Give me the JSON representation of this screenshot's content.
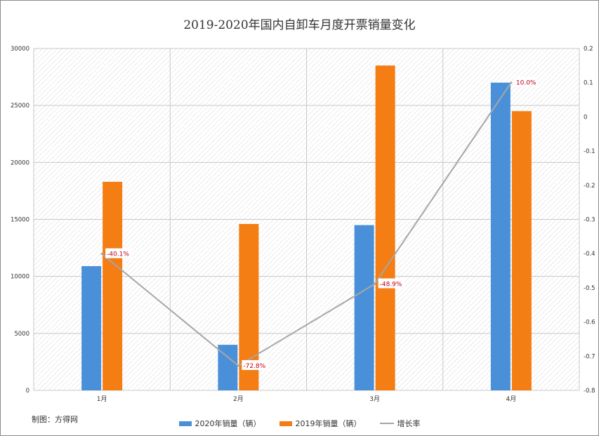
{
  "chart_data": {
    "type": "bar",
    "title": "2019-2020年国内自卸车月度开票销量变化",
    "categories": [
      "1月",
      "2月",
      "3月",
      "4月"
    ],
    "series": [
      {
        "name": "2020年销量（辆）",
        "type": "bar",
        "axis": "left",
        "color": "#4a90d9",
        "values": [
          10900,
          4000,
          14500,
          27000
        ]
      },
      {
        "name": "2019年销量（辆）",
        "type": "bar",
        "axis": "left",
        "color": "#f47d14",
        "values": [
          18300,
          14600,
          28500,
          24500
        ]
      },
      {
        "name": "增长率",
        "type": "line",
        "axis": "right",
        "color": "#a6a6a6",
        "values": [
          -0.401,
          -0.728,
          -0.489,
          0.1
        ]
      }
    ],
    "data_labels": [
      "-40.1%",
      "-72.8%",
      "-48.9%",
      "10.0%"
    ],
    "y_left": {
      "min": 0,
      "max": 30000,
      "ticks": [
        "0",
        "5000",
        "10000",
        "15000",
        "20000",
        "25000",
        "30000"
      ]
    },
    "y_right": {
      "min": -0.8,
      "max": 0.2,
      "ticks": [
        "-0.8",
        "-0.7",
        "-0.6",
        "-0.5",
        "-0.4",
        "-0.3",
        "-0.2",
        "-0.1",
        "0",
        "0.1",
        "0.2"
      ]
    },
    "grid": true,
    "legend_position": "bottom",
    "label_color": "#c0001a"
  },
  "credit": "制图：方得网"
}
